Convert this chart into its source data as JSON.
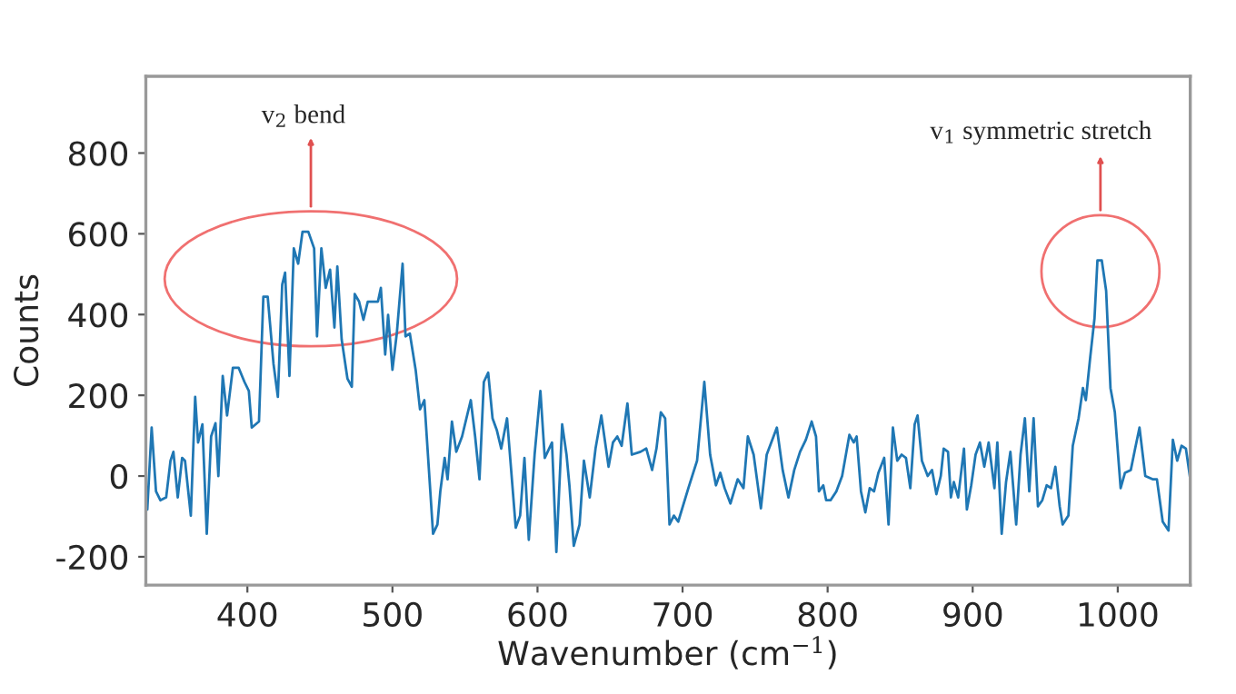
{
  "chart_data": {
    "type": "line",
    "xlabel": "Wavenumber (cm$^{−1}$)",
    "ylabel": "Counts",
    "xlim": [
      330,
      1050
    ],
    "ylim": [
      -270,
      990
    ],
    "xticks": [
      400,
      500,
      600,
      700,
      800,
      900,
      1000
    ],
    "yticks": [
      -200,
      0,
      200,
      400,
      600,
      800
    ],
    "grid": false,
    "series": [
      {
        "color": "#1f77b4",
        "x": [
          331,
          334,
          337,
          340,
          344,
          347,
          349,
          352,
          355,
          357,
          361,
          364,
          366,
          369,
          372,
          375,
          378,
          380,
          383,
          386,
          390,
          394,
          398,
          401,
          403,
          408,
          411,
          414,
          418,
          421,
          424,
          426,
          429,
          432,
          435,
          438,
          442,
          446,
          448,
          451,
          454,
          457,
          460,
          462,
          465,
          469,
          472,
          474,
          477,
          480,
          483,
          490,
          492,
          495,
          497,
          500,
          503,
          507,
          509,
          512,
          516,
          519,
          522,
          525,
          528,
          531,
          533,
          536,
          538,
          541,
          544,
          548,
          554,
          557,
          560,
          563,
          566,
          569,
          572,
          575,
          579,
          585,
          588,
          591,
          594,
          598,
          602,
          605,
          610,
          613,
          617,
          620,
          622,
          625,
          629,
          632,
          636,
          640,
          644,
          649,
          652,
          655,
          658,
          662,
          665,
          671,
          675,
          679,
          682,
          685,
          688,
          691,
          694,
          697,
          704,
          710,
          715,
          719,
          723,
          726,
          729,
          733,
          738,
          742,
          745,
          749,
          754,
          758,
          765,
          769,
          773,
          777,
          781,
          785,
          789,
          792,
          794,
          797,
          799,
          802,
          806,
          810,
          815,
          818,
          820,
          823,
          826,
          829,
          832,
          835,
          839,
          842,
          845,
          848,
          851,
          854,
          857,
          860,
          862,
          865,
          869,
          872,
          875,
          878,
          880,
          883,
          885,
          887,
          890,
          894,
          896,
          899,
          902,
          905,
          908,
          911,
          915,
          917,
          920,
          923,
          926,
          930,
          933,
          936,
          939,
          942,
          945,
          948,
          951,
          954,
          957,
          960,
          962,
          966,
          969,
          973,
          976,
          978,
          981,
          984,
          986,
          989,
          992,
          995,
          998,
          1002,
          1005,
          1009,
          1012,
          1015,
          1019,
          1024,
          1027,
          1031,
          1035,
          1038,
          1041,
          1044,
          1047,
          1050
        ],
        "values": [
          -83,
          120,
          -38,
          -60,
          -53,
          38,
          60,
          -53,
          45,
          38,
          -98,
          196,
          83,
          128,
          -143,
          98,
          131,
          0,
          248,
          150,
          268,
          268,
          233,
          211,
          120,
          135,
          444,
          444,
          278,
          196,
          474,
          504,
          248,
          564,
          526,
          605,
          605,
          564,
          346,
          564,
          466,
          511,
          368,
          519,
          338,
          241,
          221,
          451,
          432,
          387,
          432,
          432,
          466,
          301,
          399,
          263,
          353,
          526,
          346,
          353,
          263,
          165,
          188,
          23,
          -143,
          -120,
          -38,
          45,
          -8,
          135,
          60,
          98,
          188,
          98,
          -8,
          233,
          256,
          143,
          113,
          68,
          143,
          -128,
          -98,
          45,
          -158,
          53,
          211,
          45,
          83,
          -188,
          128,
          53,
          -23,
          -173,
          -120,
          38,
          -53,
          68,
          150,
          23,
          83,
          98,
          75,
          180,
          53,
          60,
          68,
          15,
          68,
          158,
          143,
          -120,
          -98,
          -113,
          -30,
          38,
          233,
          53,
          -23,
          8,
          -30,
          -68,
          -8,
          -30,
          98,
          53,
          -80,
          53,
          120,
          15,
          -53,
          15,
          60,
          90,
          135,
          98,
          -38,
          -23,
          -60,
          -60,
          -38,
          0,
          102,
          83,
          98,
          -38,
          -90,
          -30,
          -38,
          8,
          45,
          -120,
          120,
          38,
          53,
          45,
          -30,
          128,
          150,
          38,
          0,
          15,
          -45,
          0,
          68,
          60,
          -53,
          -15,
          -53,
          68,
          -83,
          -23,
          53,
          83,
          23,
          83,
          -30,
          83,
          -143,
          -15,
          60,
          -120,
          53,
          143,
          -38,
          143,
          -75,
          -60,
          -23,
          -30,
          23,
          -75,
          -120,
          -98,
          75,
          143,
          218,
          188,
          293,
          391,
          534,
          534,
          459,
          218,
          158,
          -30,
          8,
          15,
          68,
          120,
          0,
          -8,
          -8,
          -113,
          -135,
          90,
          38,
          75,
          68,
          -8
        ]
      }
    ],
    "annotations": [
      "v$_{2}$ bend",
      "v$_{1}$ symmetric stretch"
    ]
  }
}
